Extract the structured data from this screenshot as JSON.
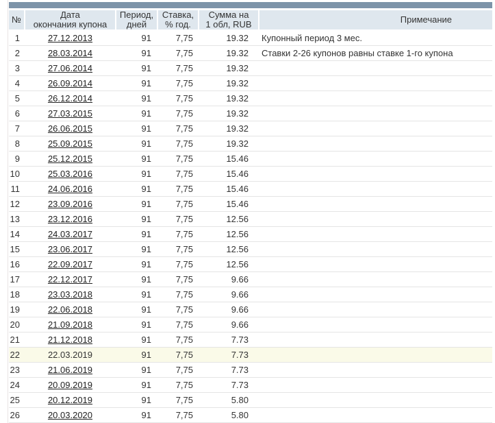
{
  "colors": {
    "top_bar": "#7D94A9",
    "header_bg": "#DFE7EE",
    "highlight_row_bg": "#FAFAE8",
    "row_border": "#E4E4E4",
    "text": "#333333"
  },
  "table": {
    "header": {
      "num": "№",
      "date1": "Дата",
      "date2": "окончания купона",
      "period1": "Период,",
      "period2": "дней",
      "rate1": "Ставка,",
      "rate2": "% год.",
      "amount1": "Сумма на",
      "amount2": "1 обл, RUB",
      "note": "Примечание"
    },
    "rows": [
      {
        "n": "1",
        "date": "27.12.2013",
        "period": "91",
        "rate": "7,75",
        "amount": "19.32",
        "note": "Купонный период 3 мес."
      },
      {
        "n": "2",
        "date": "28.03.2014",
        "period": "91",
        "rate": "7,75",
        "amount": "19.32",
        "note": "Ставки 2-26 купонов равны ставке 1-го купона"
      },
      {
        "n": "3",
        "date": "27.06.2014",
        "period": "91",
        "rate": "7,75",
        "amount": "19.32",
        "note": ""
      },
      {
        "n": "4",
        "date": "26.09.2014",
        "period": "91",
        "rate": "7,75",
        "amount": "19.32",
        "note": ""
      },
      {
        "n": "5",
        "date": "26.12.2014",
        "period": "91",
        "rate": "7,75",
        "amount": "19.32",
        "note": ""
      },
      {
        "n": "6",
        "date": "27.03.2015",
        "period": "91",
        "rate": "7,75",
        "amount": "19.32",
        "note": ""
      },
      {
        "n": "7",
        "date": "26.06.2015",
        "period": "91",
        "rate": "7,75",
        "amount": "19.32",
        "note": ""
      },
      {
        "n": "8",
        "date": "25.09.2015",
        "period": "91",
        "rate": "7,75",
        "amount": "19.32",
        "note": ""
      },
      {
        "n": "9",
        "date": "25.12.2015",
        "period": "91",
        "rate": "7,75",
        "amount": "15.46",
        "note": ""
      },
      {
        "n": "10",
        "date": "25.03.2016",
        "period": "91",
        "rate": "7,75",
        "amount": "15.46",
        "note": ""
      },
      {
        "n": "11",
        "date": "24.06.2016",
        "period": "91",
        "rate": "7,75",
        "amount": "15.46",
        "note": ""
      },
      {
        "n": "12",
        "date": "23.09.2016",
        "period": "91",
        "rate": "7,75",
        "amount": "15.46",
        "note": ""
      },
      {
        "n": "13",
        "date": "23.12.2016",
        "period": "91",
        "rate": "7,75",
        "amount": "12.56",
        "note": ""
      },
      {
        "n": "14",
        "date": "24.03.2017",
        "period": "91",
        "rate": "7,75",
        "amount": "12.56",
        "note": ""
      },
      {
        "n": "15",
        "date": "23.06.2017",
        "period": "91",
        "rate": "7,75",
        "amount": "12.56",
        "note": ""
      },
      {
        "n": "16",
        "date": "22.09.2017",
        "period": "91",
        "rate": "7,75",
        "amount": "12.56",
        "note": ""
      },
      {
        "n": "17",
        "date": "22.12.2017",
        "period": "91",
        "rate": "7,75",
        "amount": "9.66",
        "note": ""
      },
      {
        "n": "18",
        "date": "23.03.2018",
        "period": "91",
        "rate": "7,75",
        "amount": "9.66",
        "note": ""
      },
      {
        "n": "19",
        "date": "22.06.2018",
        "period": "91",
        "rate": "7,75",
        "amount": "9.66",
        "note": ""
      },
      {
        "n": "20",
        "date": "21.09.2018",
        "period": "91",
        "rate": "7,75",
        "amount": "9.66",
        "note": ""
      },
      {
        "n": "21",
        "date": "21.12.2018",
        "period": "91",
        "rate": "7,75",
        "amount": "7.73",
        "note": ""
      },
      {
        "n": "22",
        "date": "22.03.2019",
        "period": "91",
        "rate": "7,75",
        "amount": "7.73",
        "note": "",
        "hl": true,
        "link": false
      },
      {
        "n": "23",
        "date": "21.06.2019",
        "period": "91",
        "rate": "7,75",
        "amount": "7.73",
        "note": ""
      },
      {
        "n": "24",
        "date": "20.09.2019",
        "period": "91",
        "rate": "7,75",
        "amount": "7.73",
        "note": ""
      },
      {
        "n": "25",
        "date": "20.12.2019",
        "period": "91",
        "rate": "7,75",
        "amount": "5.80",
        "note": ""
      },
      {
        "n": "26",
        "date": "20.03.2020",
        "period": "91",
        "rate": "7,75",
        "amount": "5.80",
        "note": ""
      }
    ]
  }
}
